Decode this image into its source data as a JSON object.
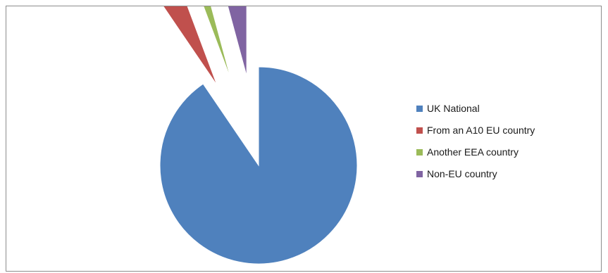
{
  "chart_data": {
    "type": "pie",
    "title": "",
    "categories": [
      "UK National",
      "From an A10 EU country",
      "Another EEA country",
      "Non-EU country"
    ],
    "values": [
      90.5,
      3.8,
      1.5,
      4.2
    ],
    "colors": [
      "#4f81bd",
      "#c0504d",
      "#9bbb59",
      "#8064a2"
    ],
    "exploded": [
      false,
      true,
      true,
      true
    ],
    "legend_position": "right"
  }
}
